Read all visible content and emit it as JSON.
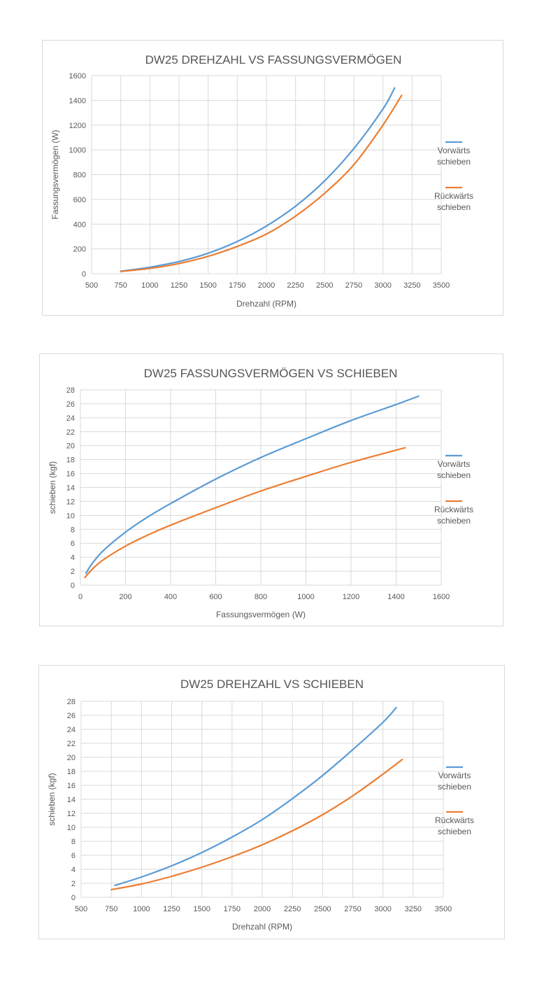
{
  "chart_data": [
    {
      "type": "line",
      "title": "DW25 DREHZAHL VS FASSUNGSVERMÖGEN",
      "xlabel": "Drehzahl (RPM)",
      "ylabel": "Fassungsvermögen (W)",
      "xlim": [
        500,
        3500
      ],
      "ylim": [
        0,
        1600
      ],
      "xticks": [
        "500",
        "750",
        "1000",
        "1250",
        "1500",
        "1750",
        "2000",
        "2250",
        "2500",
        "2750",
        "3000",
        "3250",
        "3500"
      ],
      "yticks": [
        "0",
        "200",
        "400",
        "600",
        "800",
        "1000",
        "1200",
        "1400",
        "1600"
      ],
      "grid": true,
      "legend_position": "right",
      "series": [
        {
          "name": "Vorwärts schieben",
          "color": "#5b9bd5",
          "x": [
            750,
            1000,
            1250,
            1500,
            1750,
            2000,
            2250,
            2500,
            2750,
            3000,
            3100
          ],
          "y": [
            20,
            52,
            98,
            165,
            260,
            385,
            545,
            750,
            1010,
            1330,
            1500
          ]
        },
        {
          "name": "Rückwärts schieben",
          "color": "#ed7d31",
          "x": [
            750,
            1000,
            1250,
            1500,
            1750,
            2000,
            2250,
            2500,
            2750,
            3000,
            3160
          ],
          "y": [
            18,
            42,
            82,
            140,
            220,
            320,
            465,
            650,
            880,
            1200,
            1440
          ]
        }
      ]
    },
    {
      "type": "line",
      "title": "DW25 FASSUNGSVERMÖGEN VS SCHIEBEN",
      "xlabel": "Fassungsvermögen (W)",
      "ylabel": "schieben (kgf)",
      "xlim": [
        0,
        1600
      ],
      "ylim": [
        0,
        28
      ],
      "xticks": [
        "0",
        "200",
        "400",
        "600",
        "800",
        "1000",
        "1200",
        "1400",
        "1600"
      ],
      "yticks": [
        "0",
        "2",
        "4",
        "6",
        "8",
        "10",
        "12",
        "14",
        "16",
        "18",
        "20",
        "22",
        "24",
        "26",
        "28"
      ],
      "grid": true,
      "legend_position": "right",
      "series": [
        {
          "name": "Vorwärts schieben",
          "color": "#5b9bd5",
          "x": [
            25,
            50,
            100,
            200,
            300,
            400,
            600,
            800,
            1000,
            1200,
            1400,
            1500
          ],
          "y": [
            1.7,
            3.0,
            4.9,
            7.6,
            9.8,
            11.7,
            15.2,
            18.3,
            21.0,
            23.6,
            25.9,
            27.1
          ]
        },
        {
          "name": "Rückwärts schieben",
          "color": "#ed7d31",
          "x": [
            20,
            50,
            100,
            200,
            300,
            400,
            600,
            800,
            1000,
            1200,
            1440
          ],
          "y": [
            1.1,
            2.2,
            3.6,
            5.6,
            7.2,
            8.6,
            11.1,
            13.5,
            15.6,
            17.6,
            19.7
          ]
        }
      ]
    },
    {
      "type": "line",
      "title": "DW25 DREHZAHL VS SCHIEBEN",
      "xlabel": "Drehzahl (RPM)",
      "ylabel": "schieben (kgf)",
      "xlim": [
        500,
        3500
      ],
      "ylim": [
        0,
        28
      ],
      "xticks": [
        "500",
        "750",
        "1000",
        "1250",
        "1500",
        "1750",
        "2000",
        "2250",
        "2500",
        "2750",
        "3000",
        "3250",
        "3500"
      ],
      "yticks": [
        "0",
        "2",
        "4",
        "6",
        "8",
        "10",
        "12",
        "14",
        "16",
        "18",
        "20",
        "22",
        "24",
        "26",
        "28"
      ],
      "grid": true,
      "legend_position": "right",
      "series": [
        {
          "name": "Vorwärts schieben",
          "color": "#5b9bd5",
          "x": [
            780,
            1000,
            1250,
            1500,
            1750,
            2000,
            2250,
            2500,
            2750,
            3000,
            3110
          ],
          "y": [
            1.7,
            2.9,
            4.5,
            6.4,
            8.6,
            11.1,
            14.1,
            17.4,
            21.1,
            25.0,
            27.1
          ]
        },
        {
          "name": "Rückwärts schieben",
          "color": "#ed7d31",
          "x": [
            750,
            1000,
            1250,
            1500,
            1750,
            2000,
            2250,
            2500,
            2750,
            3000,
            3160
          ],
          "y": [
            1.1,
            1.9,
            3.0,
            4.3,
            5.8,
            7.5,
            9.5,
            11.8,
            14.5,
            17.6,
            19.7
          ]
        }
      ]
    }
  ]
}
